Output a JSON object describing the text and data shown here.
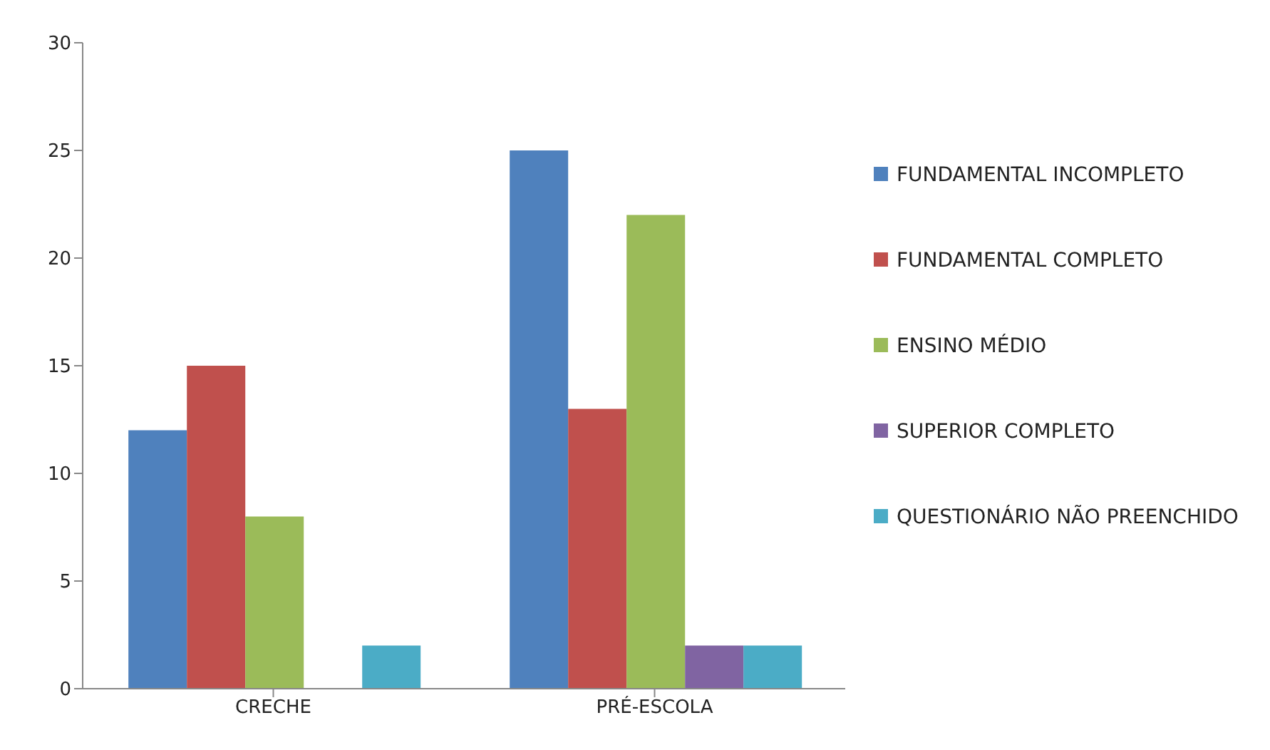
{
  "chart_data": {
    "type": "bar",
    "categories": [
      "CRECHE",
      "PRÉ-ESCOLA"
    ],
    "series": [
      {
        "name": "FUNDAMENTAL INCOMPLETO",
        "color": "#4f81bd",
        "values": [
          12,
          25
        ]
      },
      {
        "name": "FUNDAMENTAL COMPLETO",
        "color": "#c0504d",
        "values": [
          15,
          13
        ]
      },
      {
        "name": "ENSINO MÉDIO",
        "color": "#9bbb59",
        "values": [
          8,
          22
        ]
      },
      {
        "name": "SUPERIOR COMPLETO",
        "color": "#8064a2",
        "values": [
          0,
          2
        ]
      },
      {
        "name": "QUESTIONÁRIO NÃO PREENCHIDO",
        "color": "#4bacc6",
        "values": [
          2,
          2
        ]
      }
    ],
    "ylim": [
      0,
      30
    ],
    "yticks": [
      0,
      5,
      10,
      15,
      20,
      25,
      30
    ],
    "grid": false,
    "legend": "right"
  }
}
